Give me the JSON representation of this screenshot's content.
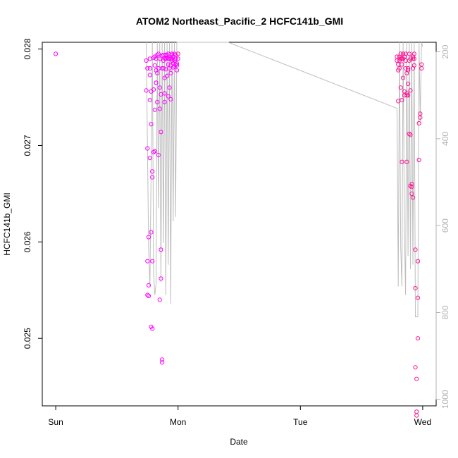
{
  "chart_data": {
    "type": "scatter",
    "title": "ATOM2 Northeast_Pacific_2 HCFC141b_GMI",
    "xlabel": "Date",
    "ylabel": "HCFC141b_GMI",
    "x_ticks": [
      {
        "label": "Sun",
        "t": 0
      },
      {
        "label": "Mon",
        "t": 1
      },
      {
        "label": "Tue",
        "t": 2
      },
      {
        "label": "Wed",
        "t": 3
      }
    ],
    "xlim": [
      -0.11,
      3.11
    ],
    "ylim": [
      0.0243,
      0.02807
    ],
    "y_ticks": [
      0.025,
      0.026,
      0.027,
      0.028
    ],
    "y2_label": "",
    "y2_ticks": [
      200,
      400,
      600,
      800,
      1000
    ],
    "y2lim": [
      1015,
      178
    ],
    "grid": false,
    "colors": {
      "points": "#ff00ff",
      "points_dense": "#ff1493",
      "line": "#bebebe"
    },
    "series": [
      {
        "kind": "points",
        "t": [
          0.0,
          0.74,
          0.74,
          0.75,
          0.75,
          0.75,
          0.75,
          0.76,
          0.76,
          0.76,
          0.77,
          0.77,
          0.77,
          0.77,
          0.77,
          0.78,
          0.78,
          0.78,
          0.78,
          0.79,
          0.79,
          0.79,
          0.79,
          0.8,
          0.8,
          0.8,
          0.81,
          0.81,
          0.81,
          0.81,
          0.82,
          0.82,
          0.82,
          0.82,
          0.83,
          0.83,
          0.83,
          0.84,
          0.84,
          0.84,
          0.85,
          0.85,
          0.85,
          0.85,
          0.86,
          0.86,
          0.86,
          0.86,
          0.87,
          0.87,
          0.87,
          0.87,
          0.88,
          0.88,
          0.88,
          0.89,
          0.89,
          0.89,
          0.89,
          0.9,
          0.9,
          0.9,
          0.91,
          0.91,
          0.91,
          0.92,
          0.92,
          0.92,
          0.92,
          0.93,
          0.93,
          0.93,
          0.94,
          0.94,
          0.94,
          0.94,
          0.95,
          0.95,
          0.95,
          0.95,
          0.96,
          0.96,
          0.96,
          0.97,
          0.97,
          0.97,
          0.98,
          0.98,
          0.98,
          0.98,
          0.99,
          0.99,
          0.99,
          1.0,
          1.0,
          2.79,
          2.79,
          2.8,
          2.8,
          2.8,
          2.81,
          2.81,
          2.81,
          2.82,
          2.82,
          2.82,
          2.83,
          2.83,
          2.83,
          2.83,
          2.84,
          2.84,
          2.84,
          2.85,
          2.85,
          2.85,
          2.86,
          2.86,
          2.86,
          2.87,
          2.87,
          2.87,
          2.87,
          2.88,
          2.88,
          2.88,
          2.88,
          2.89,
          2.89,
          2.89,
          2.9,
          2.9,
          2.9,
          2.9,
          2.91,
          2.91,
          2.91,
          2.92,
          2.92,
          2.92,
          2.92,
          2.93,
          2.93,
          2.93,
          2.94,
          2.94,
          2.94,
          2.95,
          2.95,
          2.95,
          2.96,
          2.96,
          2.96,
          2.97,
          2.97,
          2.98,
          2.98,
          2.99,
          2.99
        ],
        "values": [
          0.02795,
          0.02788,
          0.02757,
          0.0278,
          0.02697,
          0.0258,
          0.02545,
          0.02544,
          0.02555,
          0.02605,
          0.02687,
          0.02747,
          0.02773,
          0.0278,
          0.0279,
          0.02756,
          0.02722,
          0.02512,
          0.0261,
          0.0251,
          0.0258,
          0.02667,
          0.02673,
          0.02693,
          0.02758,
          0.02791,
          0.02694,
          0.02737,
          0.02783,
          0.02792,
          0.02778,
          0.02765,
          0.02765,
          0.0279,
          0.02794,
          0.02745,
          0.02775,
          0.02795,
          0.0269,
          0.0278,
          0.0276,
          0.02738,
          0.0279,
          0.0254,
          0.02562,
          0.02714,
          0.02592,
          0.02753,
          0.0278,
          0.02793,
          0.02475,
          0.02478,
          0.02788,
          0.02794,
          0.0278,
          0.02754,
          0.02745,
          0.0277,
          0.0279,
          0.02779,
          0.02794,
          0.0279,
          0.02772,
          0.02794,
          0.02791,
          0.02751,
          0.02784,
          0.0279,
          0.02795,
          0.0278,
          0.0276,
          0.0279,
          0.02748,
          0.02775,
          0.02783,
          0.0279,
          0.02794,
          0.02788,
          0.0279,
          0.02795,
          0.02785,
          0.02781,
          0.02792,
          0.02788,
          0.02795,
          0.02782,
          0.0279,
          0.02784,
          0.02794,
          0.0279,
          0.02783,
          0.02778,
          0.02785,
          0.0279,
          0.02795,
          0.02792,
          0.02788,
          0.02784,
          0.02778,
          0.02746,
          0.02788,
          0.02792,
          0.0278,
          0.0279,
          0.02795,
          0.0276,
          0.0279,
          0.02747,
          0.02683,
          0.02784,
          0.02795,
          0.0277,
          0.0279,
          0.02756,
          0.02752,
          0.02792,
          0.02788,
          0.02795,
          0.0278,
          0.02754,
          0.02752,
          0.02775,
          0.02683,
          0.0278,
          0.02764,
          0.02752,
          0.02778,
          0.02795,
          0.02788,
          0.02712,
          0.0279,
          0.02757,
          0.02711,
          0.02658,
          0.02657,
          0.0265,
          0.0266,
          0.02646,
          0.0278,
          0.0279,
          0.02792,
          0.02795,
          0.0279,
          0.02783,
          0.02592,
          0.02552,
          0.0247,
          0.0242,
          0.02424,
          0.02458,
          0.025,
          0.02542,
          0.0258,
          0.02723,
          0.02685,
          0.02733,
          0.02729,
          0.0278,
          0.02784
        ],
        "dense_from_index": 94
      },
      {
        "kind": "line",
        "t": [
          0.74,
          0.76,
          0.77,
          0.79,
          0.8,
          0.81,
          0.82,
          0.83,
          0.84,
          0.85,
          0.86,
          0.87,
          0.88,
          0.89,
          0.9,
          0.91,
          0.92,
          0.93,
          0.94,
          0.95,
          0.96,
          0.97,
          0.98,
          0.99,
          1.0,
          1.41,
          2.79,
          2.8,
          2.81,
          2.82,
          2.83,
          2.84,
          2.85,
          2.86,
          2.87,
          2.88,
          2.89,
          2.9,
          2.91,
          2.92,
          2.93,
          2.94,
          2.95,
          2.96,
          2.97,
          2.98,
          2.99,
          3.0
        ],
        "values": [
          178,
          660,
          740,
          178,
          710,
          760,
          735,
          178,
          560,
          178,
          730,
          178,
          640,
          178,
          760,
          178,
          690,
          178,
          780,
          178,
          590,
          178,
          580,
          178,
          178,
          178,
          330,
          740,
          178,
          650,
          740,
          178,
          610,
          760,
          178,
          670,
          178,
          700,
          178,
          690,
          178,
          810,
          810,
          810,
          178,
          360,
          178,
          188
        ]
      }
    ]
  }
}
